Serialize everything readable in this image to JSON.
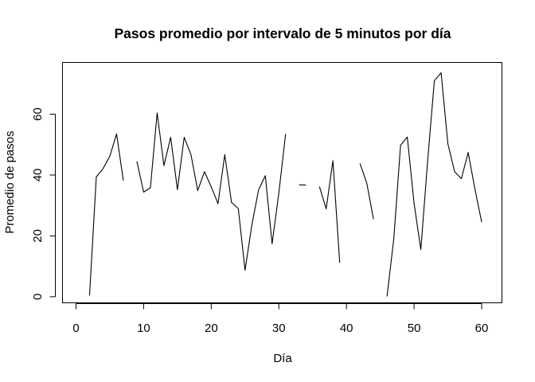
{
  "chart_data": {
    "type": "line",
    "title": "Pasos promedio por intervalo de 5 minutos por día",
    "xlabel": "Día",
    "ylabel": "Promedio de pasos",
    "xlim": [
      -2,
      63
    ],
    "ylim": [
      -2,
      77
    ],
    "x_ticks": [
      0,
      10,
      20,
      30,
      40,
      50,
      60
    ],
    "y_ticks": [
      0,
      20,
      40,
      60
    ],
    "grid": false,
    "series": [
      {
        "values": [
          [
            1,
            null
          ],
          [
            2,
            0.4
          ],
          [
            3,
            39.4
          ],
          [
            4,
            42.1
          ],
          [
            5,
            46.2
          ],
          [
            6,
            53.5
          ],
          [
            7,
            38.2
          ],
          [
            8,
            null
          ],
          [
            9,
            44.5
          ],
          [
            10,
            34.4
          ],
          [
            11,
            35.8
          ],
          [
            12,
            60.4
          ],
          [
            13,
            43.1
          ],
          [
            14,
            52.4
          ],
          [
            15,
            35.2
          ],
          [
            16,
            52.4
          ],
          [
            17,
            46.7
          ],
          [
            18,
            34.9
          ],
          [
            19,
            41.1
          ],
          [
            20,
            36.1
          ],
          [
            21,
            30.6
          ],
          [
            22,
            46.7
          ],
          [
            23,
            31.0
          ],
          [
            24,
            29.0
          ],
          [
            25,
            8.7
          ],
          [
            26,
            23.5
          ],
          [
            27,
            35.1
          ],
          [
            28,
            39.8
          ],
          [
            29,
            17.4
          ],
          [
            30,
            34.1
          ],
          [
            31,
            53.5
          ],
          [
            32,
            null
          ],
          [
            33,
            36.8
          ],
          [
            34,
            36.7
          ],
          [
            35,
            null
          ],
          [
            36,
            36.2
          ],
          [
            37,
            28.9
          ],
          [
            38,
            44.7
          ],
          [
            39,
            11.2
          ],
          [
            40,
            null
          ],
          [
            41,
            null
          ],
          [
            42,
            43.8
          ],
          [
            43,
            37.4
          ],
          [
            44,
            25.5
          ],
          [
            45,
            null
          ],
          [
            46,
            0.1
          ],
          [
            47,
            19.0
          ],
          [
            48,
            49.8
          ],
          [
            49,
            52.5
          ],
          [
            50,
            30.7
          ],
          [
            51,
            15.5
          ],
          [
            52,
            44.4
          ],
          [
            53,
            71.0
          ],
          [
            54,
            73.6
          ],
          [
            55,
            50.3
          ],
          [
            56,
            41.1
          ],
          [
            57,
            38.8
          ],
          [
            58,
            47.4
          ],
          [
            59,
            35.4
          ],
          [
            60,
            24.5
          ],
          [
            61,
            null
          ]
        ]
      }
    ]
  }
}
